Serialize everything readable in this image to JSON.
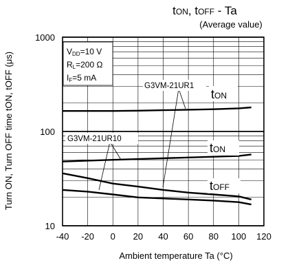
{
  "chart_data": {
    "type": "line",
    "title": {
      "main": "t",
      "main_sub": "ON",
      "sep": ", t",
      "main_sub2": "OFF",
      "rest": " - Ta",
      "subtitle": "(Average value)"
    },
    "xlabel": "Ambient temperature Ta (°C)",
    "ylabel": "Turn ON, Turn OFF time tON, tOFF (μs)",
    "x_scale": "linear",
    "y_scale": "log",
    "xlim": [
      -40,
      120
    ],
    "ylim": [
      10,
      1000
    ],
    "xticks": [
      "-40",
      "-20",
      "0",
      "20",
      "40",
      "60",
      "80",
      "100",
      "120"
    ],
    "yticks": [
      "10",
      "100",
      "1000"
    ],
    "grid": true,
    "conditions": [
      {
        "main": "V",
        "sub": "DD",
        "rest": "=10 V"
      },
      {
        "main": "R",
        "sub": "L",
        "rest": "=200 Ω"
      },
      {
        "main": "I",
        "sub": "F",
        "rest": "=5 mA"
      }
    ],
    "series": [
      {
        "label_main": "t",
        "label_sub": "ON",
        "device": "G3VM-21UR1",
        "x": [
          -40,
          -20,
          0,
          20,
          40,
          60,
          80,
          100,
          110
        ],
        "y": [
          165,
          165,
          165,
          166,
          168,
          170,
          172,
          176,
          180
        ]
      },
      {
        "label_main": "t",
        "label_sub": "ON",
        "device": "G3VM-21UR10",
        "x": [
          -40,
          -20,
          0,
          20,
          40,
          60,
          80,
          100,
          110
        ],
        "y": [
          48,
          49,
          50,
          51,
          52,
          53,
          54,
          55,
          57
        ]
      },
      {
        "label_main": "t",
        "label_sub": "OFF",
        "device": "G3VM-21UR1",
        "x": [
          -40,
          -20,
          0,
          20,
          40,
          60,
          80,
          100,
          110
        ],
        "y": [
          36,
          32,
          28,
          26,
          24,
          22.5,
          21.5,
          20.5,
          19
        ]
      },
      {
        "label_main": "t",
        "label_sub": "OFF",
        "device": "G3VM-21UR10",
        "x": [
          -40,
          -20,
          0,
          20,
          40,
          60,
          80,
          100,
          110
        ],
        "y": [
          24,
          23,
          21.5,
          20,
          19.5,
          19,
          18.5,
          17.8,
          16.8
        ]
      }
    ],
    "annotations": {
      "device_1": "G3VM-21UR1",
      "device_2": "G3VM-21UR10"
    }
  }
}
